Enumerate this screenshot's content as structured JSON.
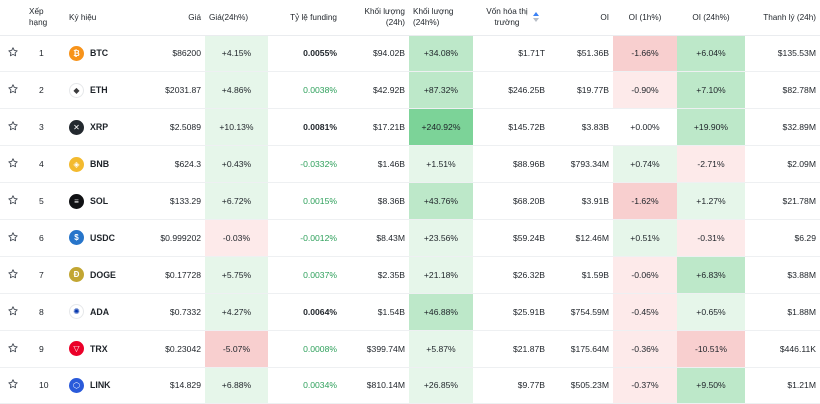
{
  "colors": {
    "pos_strong": "#7cd398",
    "pos_mid": "#bde8c9",
    "pos_light": "#e6f6ea",
    "neg_mid": "#f8cfcf",
    "neg_light": "#fdeaea",
    "neutral": "#ffffff",
    "accent_blue": "#3b82f6"
  },
  "headers": {
    "rank": "Xếp hạng",
    "symbol": "Ký hiệu",
    "price": "Giá",
    "price_change": "Giá(24h%)",
    "funding": "Tỷ lệ funding",
    "volume": "Khối lượng (24h)",
    "volume_change": "Khối lượng (24h%)",
    "market_cap": "Vốn hóa thị trường",
    "oi": "OI",
    "oi_1h": "OI (1h%)",
    "oi_24h": "OI (24h%)",
    "liquidation": "Thanh lý (24h)"
  },
  "rows": [
    {
      "rank": "1",
      "symbol": "BTC",
      "icon": "bitcoin-icon",
      "logo_color": "#f7931a",
      "glyph": "₿",
      "price": "$86200",
      "price_change": "+4.15%",
      "price_bg": "pos_light",
      "funding": "0.0055%",
      "funding_green": false,
      "volume": "$94.02B",
      "volume_change": "+34.08%",
      "volume_bg": "pos_mid",
      "market_cap": "$1.71T",
      "oi": "$51.36B",
      "oi_1h": "-1.66%",
      "oi_1h_bg": "neg_mid",
      "oi_24h": "+6.04%",
      "oi_24h_bg": "pos_mid",
      "liquidation": "$135.53M"
    },
    {
      "rank": "2",
      "symbol": "ETH",
      "icon": "ethereum-icon",
      "logo_color": "#ffffff",
      "glyph": "◆",
      "price": "$2031.87",
      "price_change": "+4.86%",
      "price_bg": "pos_light",
      "funding": "0.0038%",
      "funding_green": true,
      "volume": "$42.92B",
      "volume_change": "+87.32%",
      "volume_bg": "pos_mid",
      "market_cap": "$246.25B",
      "oi": "$19.77B",
      "oi_1h": "-0.90%",
      "oi_1h_bg": "neg_light",
      "oi_24h": "+7.10%",
      "oi_24h_bg": "pos_mid",
      "liquidation": "$82.78M"
    },
    {
      "rank": "3",
      "symbol": "XRP",
      "icon": "xrp-icon",
      "logo_color": "#23292f",
      "glyph": "✕",
      "price": "$2.5089",
      "price_change": "+10.13%",
      "price_bg": "pos_light",
      "funding": "0.0081%",
      "funding_green": false,
      "volume": "$17.21B",
      "volume_change": "+240.92%",
      "volume_bg": "pos_strong",
      "market_cap": "$145.72B",
      "oi": "$3.83B",
      "oi_1h": "+0.00%",
      "oi_1h_bg": "neutral",
      "oi_24h": "+19.90%",
      "oi_24h_bg": "pos_mid",
      "liquidation": "$32.89M"
    },
    {
      "rank": "4",
      "symbol": "BNB",
      "icon": "bnb-icon",
      "logo_color": "#f3ba2f",
      "glyph": "◈",
      "price": "$624.3",
      "price_change": "+0.43%",
      "price_bg": "pos_light",
      "funding": "-0.0332%",
      "funding_green": true,
      "volume": "$1.46B",
      "volume_change": "+1.51%",
      "volume_bg": "pos_light",
      "market_cap": "$88.96B",
      "oi": "$793.34M",
      "oi_1h": "+0.74%",
      "oi_1h_bg": "pos_light",
      "oi_24h": "-2.71%",
      "oi_24h_bg": "neg_light",
      "liquidation": "$2.09M"
    },
    {
      "rank": "5",
      "symbol": "SOL",
      "icon": "solana-icon",
      "logo_color": "#101114",
      "glyph": "≡",
      "price": "$133.29",
      "price_change": "+6.72%",
      "price_bg": "pos_light",
      "funding": "0.0015%",
      "funding_green": true,
      "volume": "$8.36B",
      "volume_change": "+43.76%",
      "volume_bg": "pos_mid",
      "market_cap": "$68.20B",
      "oi": "$3.91B",
      "oi_1h": "-1.62%",
      "oi_1h_bg": "neg_mid",
      "oi_24h": "+1.27%",
      "oi_24h_bg": "pos_light",
      "liquidation": "$21.78M"
    },
    {
      "rank": "6",
      "symbol": "USDC",
      "icon": "usdc-icon",
      "logo_color": "#2775ca",
      "glyph": "$",
      "price": "$0.999202",
      "price_change": "-0.03%",
      "price_bg": "neg_light",
      "funding": "-0.0012%",
      "funding_green": true,
      "volume": "$8.43M",
      "volume_change": "+23.56%",
      "volume_bg": "pos_light",
      "market_cap": "$59.24B",
      "oi": "$12.46M",
      "oi_1h": "+0.51%",
      "oi_1h_bg": "pos_light",
      "oi_24h": "-0.31%",
      "oi_24h_bg": "neg_light",
      "liquidation": "$6.29"
    },
    {
      "rank": "7",
      "symbol": "DOGE",
      "icon": "dogecoin-icon",
      "logo_color": "#c2a633",
      "glyph": "Ð",
      "price": "$0.17728",
      "price_change": "+5.75%",
      "price_bg": "pos_light",
      "funding": "0.0037%",
      "funding_green": true,
      "volume": "$2.35B",
      "volume_change": "+21.18%",
      "volume_bg": "pos_light",
      "market_cap": "$26.32B",
      "oi": "$1.59B",
      "oi_1h": "-0.06%",
      "oi_1h_bg": "neg_light",
      "oi_24h": "+6.83%",
      "oi_24h_bg": "pos_mid",
      "liquidation": "$3.88M"
    },
    {
      "rank": "8",
      "symbol": "ADA",
      "icon": "cardano-icon",
      "logo_color": "#ffffff",
      "glyph": "✺",
      "price": "$0.7332",
      "price_change": "+4.27%",
      "price_bg": "pos_light",
      "funding": "0.0064%",
      "funding_green": false,
      "volume": "$1.54B",
      "volume_change": "+46.88%",
      "volume_bg": "pos_mid",
      "market_cap": "$25.91B",
      "oi": "$754.59M",
      "oi_1h": "-0.45%",
      "oi_1h_bg": "neg_light",
      "oi_24h": "+0.65%",
      "oi_24h_bg": "pos_light",
      "liquidation": "$1.88M"
    },
    {
      "rank": "9",
      "symbol": "TRX",
      "icon": "tron-icon",
      "logo_color": "#eb0029",
      "glyph": "▽",
      "price": "$0.23042",
      "price_change": "-5.07%",
      "price_bg": "neg_mid",
      "funding": "0.0008%",
      "funding_green": true,
      "volume": "$399.74M",
      "volume_change": "+5.87%",
      "volume_bg": "pos_light",
      "market_cap": "$21.87B",
      "oi": "$175.64M",
      "oi_1h": "-0.36%",
      "oi_1h_bg": "neg_light",
      "oi_24h": "-10.51%",
      "oi_24h_bg": "neg_mid",
      "liquidation": "$446.11K"
    },
    {
      "rank": "10",
      "symbol": "LINK",
      "icon": "chainlink-icon",
      "logo_color": "#2a5ada",
      "glyph": "⬡",
      "price": "$14.829",
      "price_change": "+6.88%",
      "price_bg": "pos_light",
      "funding": "0.0034%",
      "funding_green": true,
      "volume": "$810.14M",
      "volume_change": "+26.85%",
      "volume_bg": "pos_light",
      "market_cap": "$9.77B",
      "oi": "$505.23M",
      "oi_1h": "-0.37%",
      "oi_1h_bg": "neg_light",
      "oi_24h": "+9.50%",
      "oi_24h_bg": "pos_mid",
      "liquidation": "$1.21M"
    }
  ]
}
